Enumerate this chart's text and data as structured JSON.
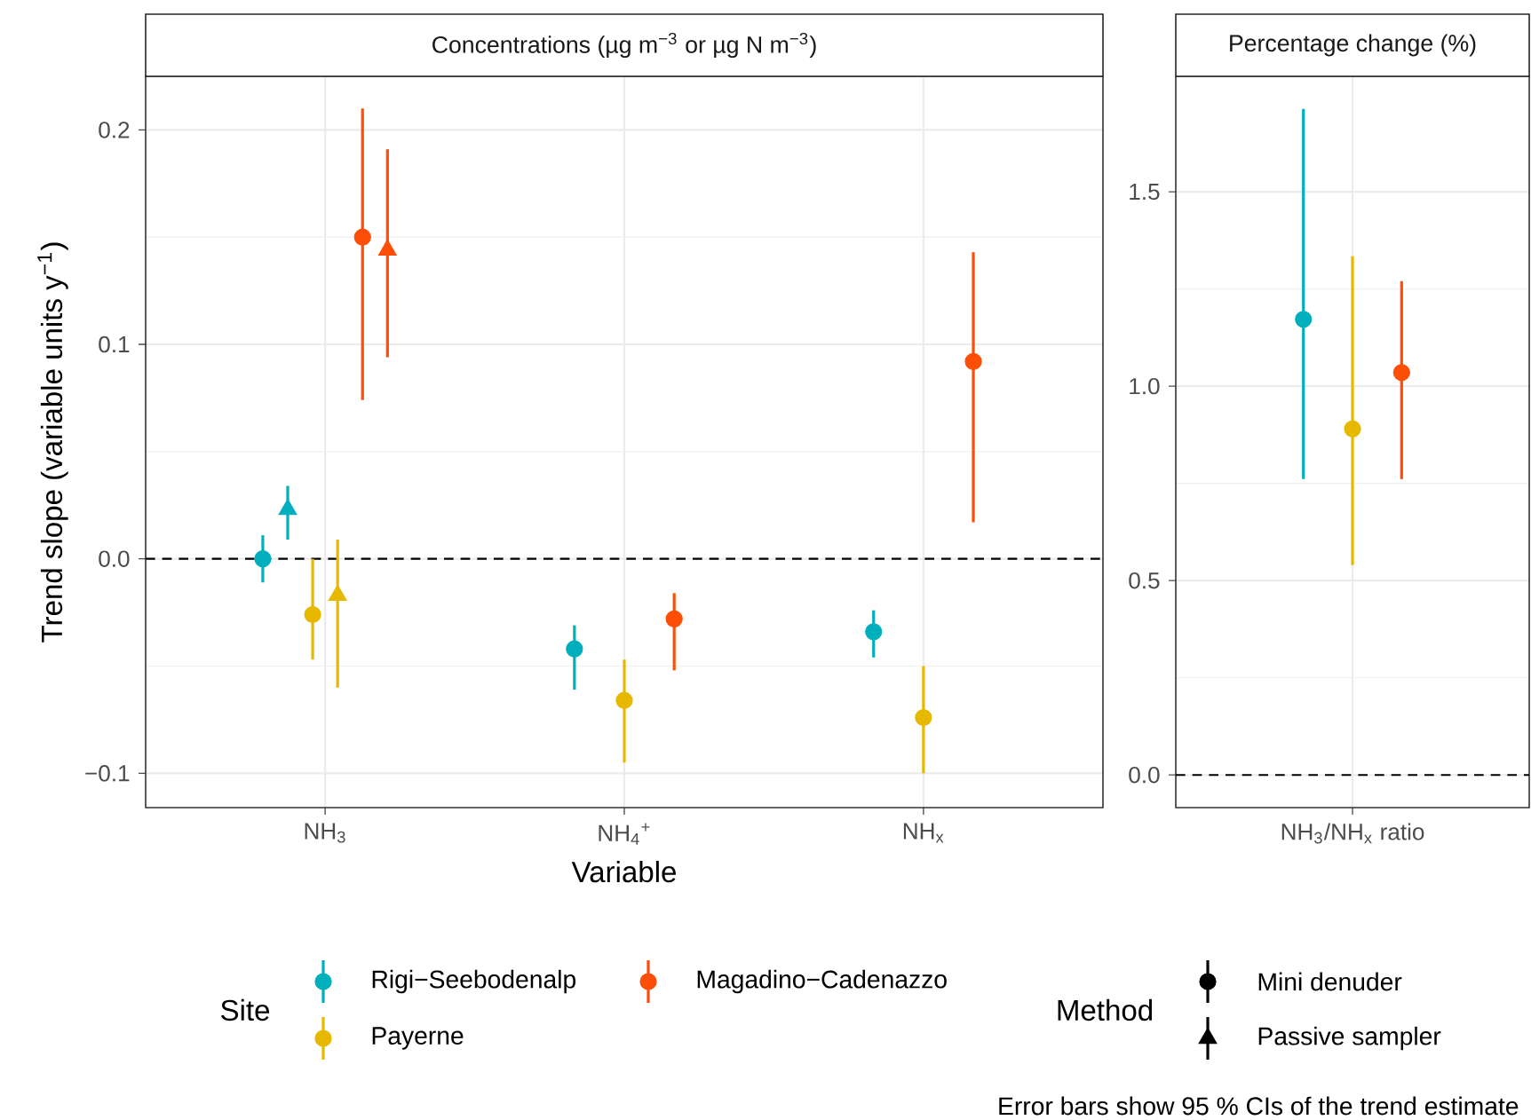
{
  "chart_data": [
    {
      "type": "scatter",
      "title": "Concentrations (µg m$^{−3}$ or µg N m$^{−3}$)",
      "xlabel": "Variable",
      "ylabel": "Trend slope (variable units y$^{−1}$)",
      "legend_title": "Site",
      "legend": "bottom",
      "categories": [
        "NH$_{3}$",
        "NH$_{4}$$^{+}$",
        "NH$_{x}$"
      ],
      "ylim": [
        -0.116,
        0.225
      ],
      "yticks": [
        {
          "value": -0.1,
          "label": "−0.1"
        },
        {
          "value": 0,
          "label": "0.0"
        },
        {
          "value": 0.1,
          "label": "0.1"
        },
        0.2
      ],
      "grid": true,
      "ref_lines": [
        {
          "axis": "y",
          "value": 0,
          "line_style": "dashed",
          "color": "#000000"
        }
      ],
      "series": [
        {
          "name": "Rigi−Seebodenalp",
          "color": "#00afbb",
          "marker": "circle",
          "values": [
            0.0,
            -0.042,
            -0.034
          ],
          "errors": [
            [
              -0.011,
              0.011
            ],
            [
              -0.061,
              -0.031
            ],
            [
              -0.046,
              -0.024
            ]
          ]
        },
        {
          "color": "#00afbb",
          "marker": "triangle",
          "values": [
            0.023,
            null,
            null
          ],
          "errors": [
            [
              0.009,
              0.034
            ],
            null,
            null
          ]
        },
        {
          "name": "Payerne",
          "color": "#e7b800",
          "marker": "circle",
          "values": [
            -0.026,
            -0.066,
            -0.074
          ],
          "errors": [
            [
              -0.047,
              0.0
            ],
            [
              -0.095,
              -0.047
            ],
            [
              -0.1,
              -0.05
            ]
          ]
        },
        {
          "color": "#e7b800",
          "marker": "triangle",
          "values": [
            -0.017,
            null,
            null
          ],
          "errors": [
            [
              -0.06,
              0.009
            ],
            null,
            null
          ]
        },
        {
          "name": "Magadino−Cadenazzo",
          "color": "#fc4e07",
          "marker": "circle",
          "values": [
            0.15,
            -0.028,
            0.092
          ],
          "errors": [
            [
              0.074,
              0.21
            ],
            [
              -0.052,
              -0.016
            ],
            [
              0.017,
              0.143
            ]
          ]
        },
        {
          "color": "#fc4e07",
          "marker": "triangle",
          "values": [
            0.144,
            null,
            null
          ],
          "errors": [
            [
              0.094,
              0.191
            ],
            null,
            null
          ]
        }
      ],
      "annotations": [
        "Method",
        "Mini denuder",
        "Passive sampler",
        "Error bars show 95 % CIs of the trend estimate"
      ]
    },
    {
      "type": "scatter",
      "title": "Percentage change (%)",
      "categories": [
        "NH$_{3}$/NH$_{x}$ ratio"
      ],
      "ylim": [
        -0.084,
        1.797
      ],
      "yticks": [
        {
          "value": 0,
          "label": "0.0"
        },
        0.5,
        {
          "value": 1,
          "label": "1.0"
        },
        1.5
      ],
      "grid": true,
      "ref_lines": [
        {
          "axis": "y",
          "value": 0,
          "line_style": "dashed",
          "color": "#000000"
        }
      ],
      "series": [
        {
          "color": "#00afbb",
          "marker": "circle",
          "values": [
            1.172
          ],
          "errors": [
            [
              0.761,
              1.713
            ]
          ]
        },
        {
          "color": "#e7b800",
          "marker": "circle",
          "values": [
            0.89
          ],
          "errors": [
            [
              0.54,
              1.334
            ]
          ]
        },
        {
          "color": "#fc4e07",
          "marker": "circle",
          "values": [
            1.035
          ],
          "errors": [
            [
              0.761,
              1.27
            ]
          ]
        }
      ]
    }
  ]
}
